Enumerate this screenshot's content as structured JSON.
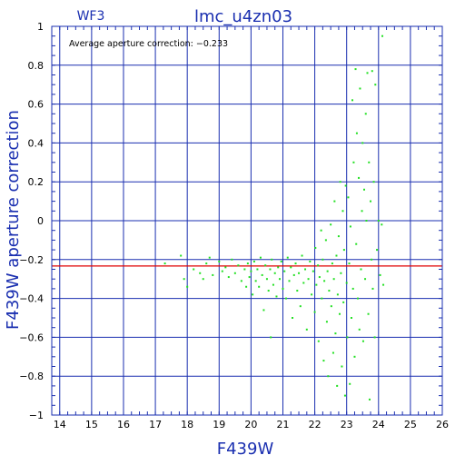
{
  "header": {
    "camera": "WF3",
    "target": "lmc_u4zn03"
  },
  "chart_data": {
    "type": "scatter",
    "xlabel": "F439W",
    "ylabel": "F439W aperture correction",
    "xlim": [
      13.75,
      26
    ],
    "ylim": [
      -1,
      1
    ],
    "xticks": [
      14,
      15,
      16,
      17,
      18,
      19,
      20,
      21,
      22,
      23,
      24,
      25,
      26
    ],
    "yticks": [
      -1,
      -0.8,
      -0.6,
      -0.4,
      -0.2,
      0,
      0.2,
      0.4,
      0.6,
      0.8,
      1
    ],
    "ytick_labels": [
      "−1",
      "−0.8",
      "−0.6",
      "−0.4",
      "−0.2",
      "0",
      "0.2",
      "0.4",
      "0.6",
      "0.8",
      "1"
    ],
    "grid": true,
    "annotation": "Average aperture correction: −0.233",
    "reference_line": {
      "y": -0.233,
      "color": "#e00000"
    },
    "colors": {
      "axes": "#1a2fb0",
      "points": "#22e022",
      "reference": "#e00000"
    },
    "points": [
      [
        17.3,
        -0.22
      ],
      [
        17.8,
        -0.18
      ],
      [
        17.9,
        -0.3
      ],
      [
        18.0,
        -0.34
      ],
      [
        18.2,
        -0.25
      ],
      [
        18.4,
        -0.27
      ],
      [
        18.5,
        -0.3
      ],
      [
        18.6,
        -0.22
      ],
      [
        18.7,
        -0.19
      ],
      [
        18.8,
        -0.28
      ],
      [
        19.0,
        -0.21
      ],
      [
        19.1,
        -0.26
      ],
      [
        19.2,
        -0.24
      ],
      [
        19.3,
        -0.29
      ],
      [
        19.4,
        -0.2
      ],
      [
        19.5,
        -0.27
      ],
      [
        19.6,
        -0.23
      ],
      [
        19.7,
        -0.31
      ],
      [
        19.8,
        -0.25
      ],
      [
        19.85,
        -0.34
      ],
      [
        19.9,
        -0.22
      ],
      [
        19.95,
        -0.29
      ],
      [
        20.0,
        -0.26
      ],
      [
        20.05,
        -0.38
      ],
      [
        20.1,
        -0.21
      ],
      [
        20.15,
        -0.31
      ],
      [
        20.2,
        -0.25
      ],
      [
        20.25,
        -0.34
      ],
      [
        20.3,
        -0.19
      ],
      [
        20.35,
        -0.28
      ],
      [
        20.4,
        -0.46
      ],
      [
        20.45,
        -0.23
      ],
      [
        20.5,
        -0.3
      ],
      [
        20.55,
        -0.36
      ],
      [
        20.6,
        -0.25
      ],
      [
        20.62,
        -0.6
      ],
      [
        20.65,
        -0.2
      ],
      [
        20.7,
        -0.33
      ],
      [
        20.75,
        -0.27
      ],
      [
        20.8,
        -0.39
      ],
      [
        20.85,
        -0.24
      ],
      [
        20.9,
        -0.3
      ],
      [
        20.95,
        -0.21
      ],
      [
        21.0,
        -0.35
      ],
      [
        21.05,
        -0.26
      ],
      [
        21.1,
        -0.4
      ],
      [
        21.15,
        -0.19
      ],
      [
        21.2,
        -0.31
      ],
      [
        21.25,
        -0.24
      ],
      [
        21.3,
        -0.5
      ],
      [
        21.35,
        -0.28
      ],
      [
        21.4,
        -0.22
      ],
      [
        21.45,
        -0.36
      ],
      [
        21.5,
        -0.27
      ],
      [
        21.55,
        -0.44
      ],
      [
        21.6,
        -0.18
      ],
      [
        21.65,
        -0.32
      ],
      [
        21.7,
        -0.25
      ],
      [
        21.75,
        -0.56
      ],
      [
        21.8,
        -0.3
      ],
      [
        21.85,
        -0.21
      ],
      [
        21.9,
        -0.38
      ],
      [
        21.95,
        -0.26
      ],
      [
        22.0,
        -0.47
      ],
      [
        22.02,
        -0.14
      ],
      [
        22.05,
        -0.33
      ],
      [
        22.1,
        -0.23
      ],
      [
        22.12,
        -0.62
      ],
      [
        22.15,
        -0.29
      ],
      [
        22.2,
        -0.05
      ],
      [
        22.22,
        -0.4
      ],
      [
        22.25,
        -0.2
      ],
      [
        22.28,
        -0.72
      ],
      [
        22.3,
        -0.31
      ],
      [
        22.35,
        -0.1
      ],
      [
        22.38,
        -0.52
      ],
      [
        22.4,
        -0.26
      ],
      [
        22.42,
        -0.8
      ],
      [
        22.45,
        -0.36
      ],
      [
        22.5,
        -0.02
      ],
      [
        22.52,
        -0.44
      ],
      [
        22.55,
        -0.22
      ],
      [
        22.58,
        -0.68
      ],
      [
        22.6,
        -0.3
      ],
      [
        22.62,
        0.1
      ],
      [
        22.65,
        -0.58
      ],
      [
        22.68,
        -0.18
      ],
      [
        22.7,
        -0.85
      ],
      [
        22.72,
        -0.38
      ],
      [
        22.75,
        -0.08
      ],
      [
        22.78,
        -0.48
      ],
      [
        22.8,
        0.2
      ],
      [
        22.82,
        -0.27
      ],
      [
        22.85,
        -0.75
      ],
      [
        22.88,
        0.05
      ],
      [
        22.9,
        -0.42
      ],
      [
        22.92,
        -0.15
      ],
      [
        22.95,
        -0.9
      ],
      [
        22.97,
        0.18
      ],
      [
        23.0,
        -0.32
      ],
      [
        23.02,
        -0.6
      ],
      [
        23.05,
        0.12
      ],
      [
        23.08,
        -0.22
      ],
      [
        23.1,
        -0.84
      ],
      [
        23.12,
        -0.03
      ],
      [
        23.15,
        -0.5
      ],
      [
        23.18,
        0.62
      ],
      [
        23.2,
        -0.35
      ],
      [
        23.22,
        0.3
      ],
      [
        23.25,
        -0.7
      ],
      [
        23.28,
        0.78
      ],
      [
        23.3,
        -0.12
      ],
      [
        23.32,
        0.45
      ],
      [
        23.35,
        -0.4
      ],
      [
        23.38,
        0.22
      ],
      [
        23.4,
        -0.56
      ],
      [
        23.42,
        0.68
      ],
      [
        23.45,
        -0.25
      ],
      [
        23.48,
        0.05
      ],
      [
        23.5,
        0.4
      ],
      [
        23.52,
        -0.62
      ],
      [
        23.55,
        0.16
      ],
      [
        23.58,
        -0.3
      ],
      [
        23.6,
        0.55
      ],
      [
        23.62,
        0.0
      ],
      [
        23.65,
        0.76
      ],
      [
        23.68,
        -0.48
      ],
      [
        23.7,
        0.3
      ],
      [
        23.72,
        -0.92
      ],
      [
        23.75,
        0.1
      ],
      [
        23.78,
        -0.2
      ],
      [
        23.8,
        0.77
      ],
      [
        23.82,
        -0.35
      ],
      [
        23.85,
        0.2
      ],
      [
        23.88,
        -0.6
      ],
      [
        23.9,
        0.7
      ],
      [
        23.95,
        -0.15
      ],
      [
        24.0,
        0.0
      ],
      [
        24.05,
        -0.28
      ],
      [
        24.1,
        -0.02
      ],
      [
        24.12,
        0.95
      ],
      [
        24.15,
        -0.33
      ]
    ]
  }
}
